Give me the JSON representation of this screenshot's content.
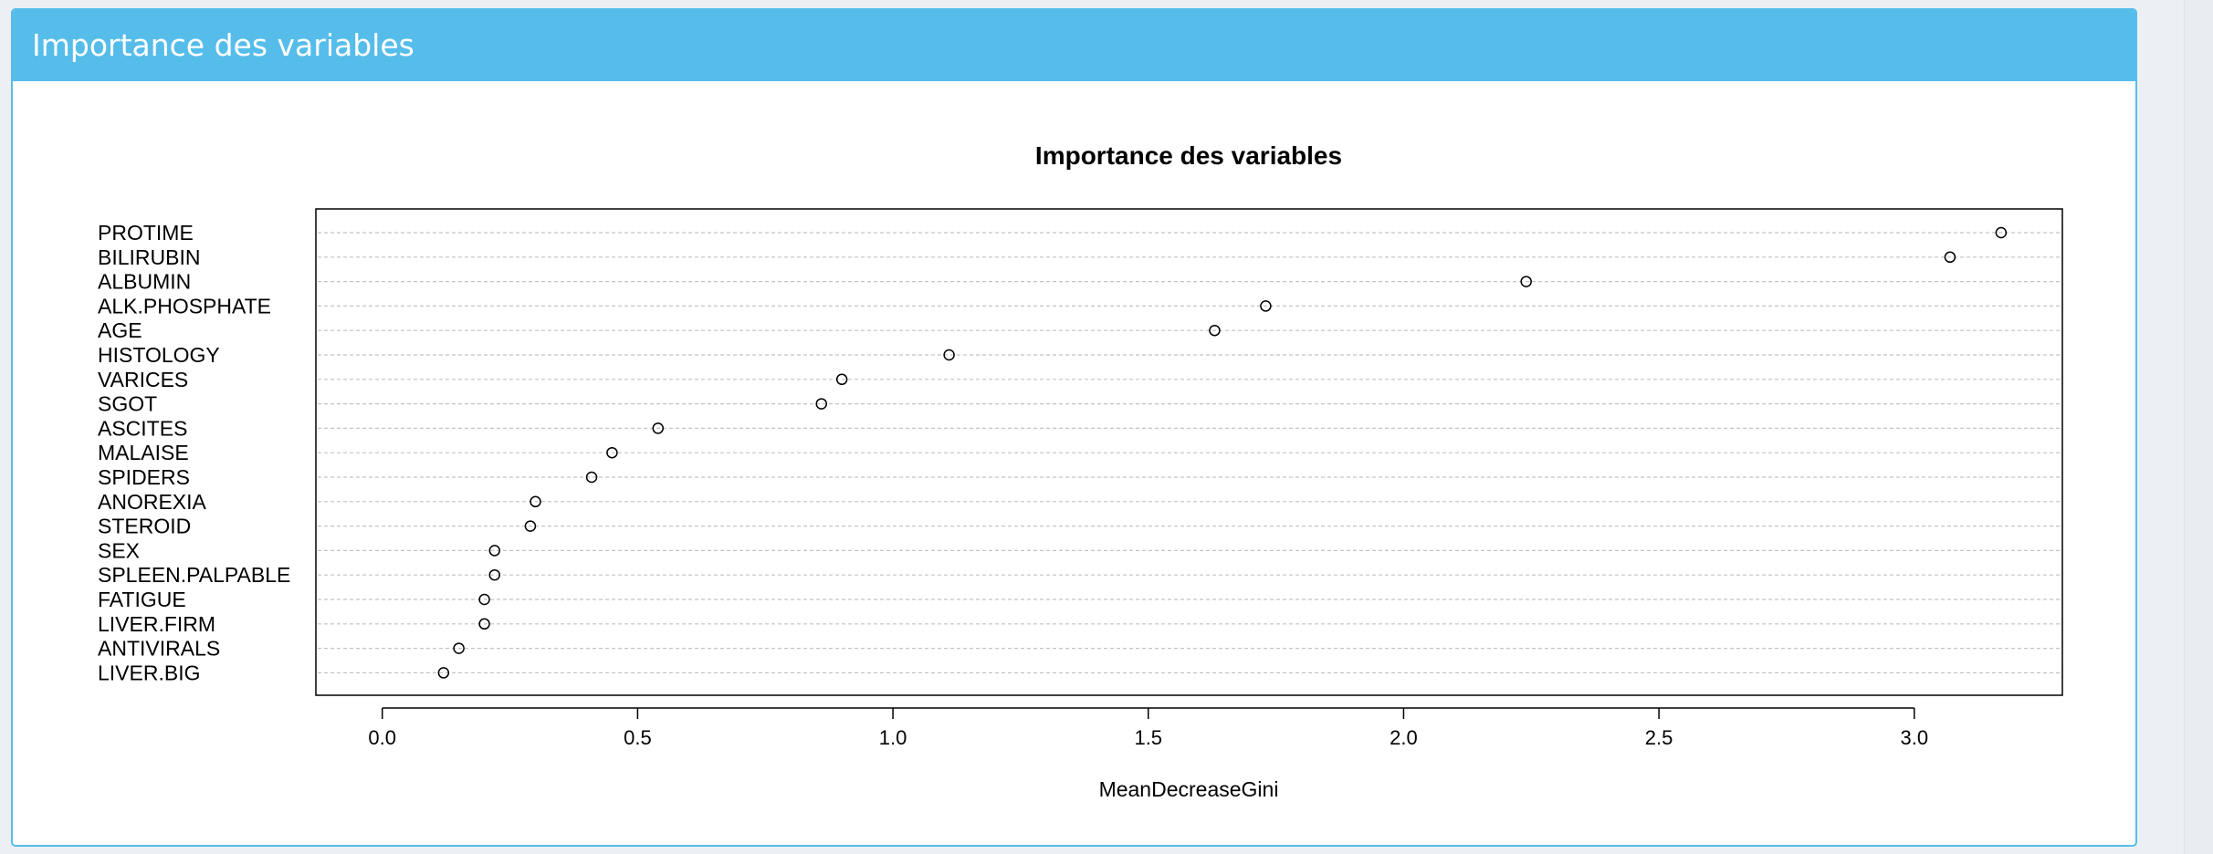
{
  "panel": {
    "title": "Importance des variables"
  },
  "chart_data": {
    "type": "scatter",
    "title": "Importance des variables",
    "xlabel": "MeanDecreaseGini",
    "ylabel": "",
    "xlim": [
      -0.13,
      3.29
    ],
    "xticks": [
      0.0,
      0.5,
      1.0,
      1.5,
      2.0,
      2.5,
      3.0
    ],
    "xtick_labels": [
      "0.0",
      "0.5",
      "1.0",
      "1.5",
      "2.0",
      "2.5",
      "3.0"
    ],
    "grid": "dotted horizontal lines",
    "marker": "open circle",
    "categories": [
      "PROTIME",
      "BILIRUBIN",
      "ALBUMIN",
      "ALK.PHOSPHATE",
      "AGE",
      "HISTOLOGY",
      "VARICES",
      "SGOT",
      "ASCITES",
      "MALAISE",
      "SPIDERS",
      "ANOREXIA",
      "STEROID",
      "SEX",
      "SPLEEN.PALPABLE",
      "FATIGUE",
      "LIVER.FIRM",
      "ANTIVIRALS",
      "LIVER.BIG"
    ],
    "values": [
      3.17,
      3.07,
      2.24,
      1.73,
      1.63,
      1.11,
      0.9,
      0.86,
      0.54,
      0.45,
      0.41,
      0.3,
      0.29,
      0.22,
      0.22,
      0.2,
      0.2,
      0.15,
      0.12
    ]
  }
}
